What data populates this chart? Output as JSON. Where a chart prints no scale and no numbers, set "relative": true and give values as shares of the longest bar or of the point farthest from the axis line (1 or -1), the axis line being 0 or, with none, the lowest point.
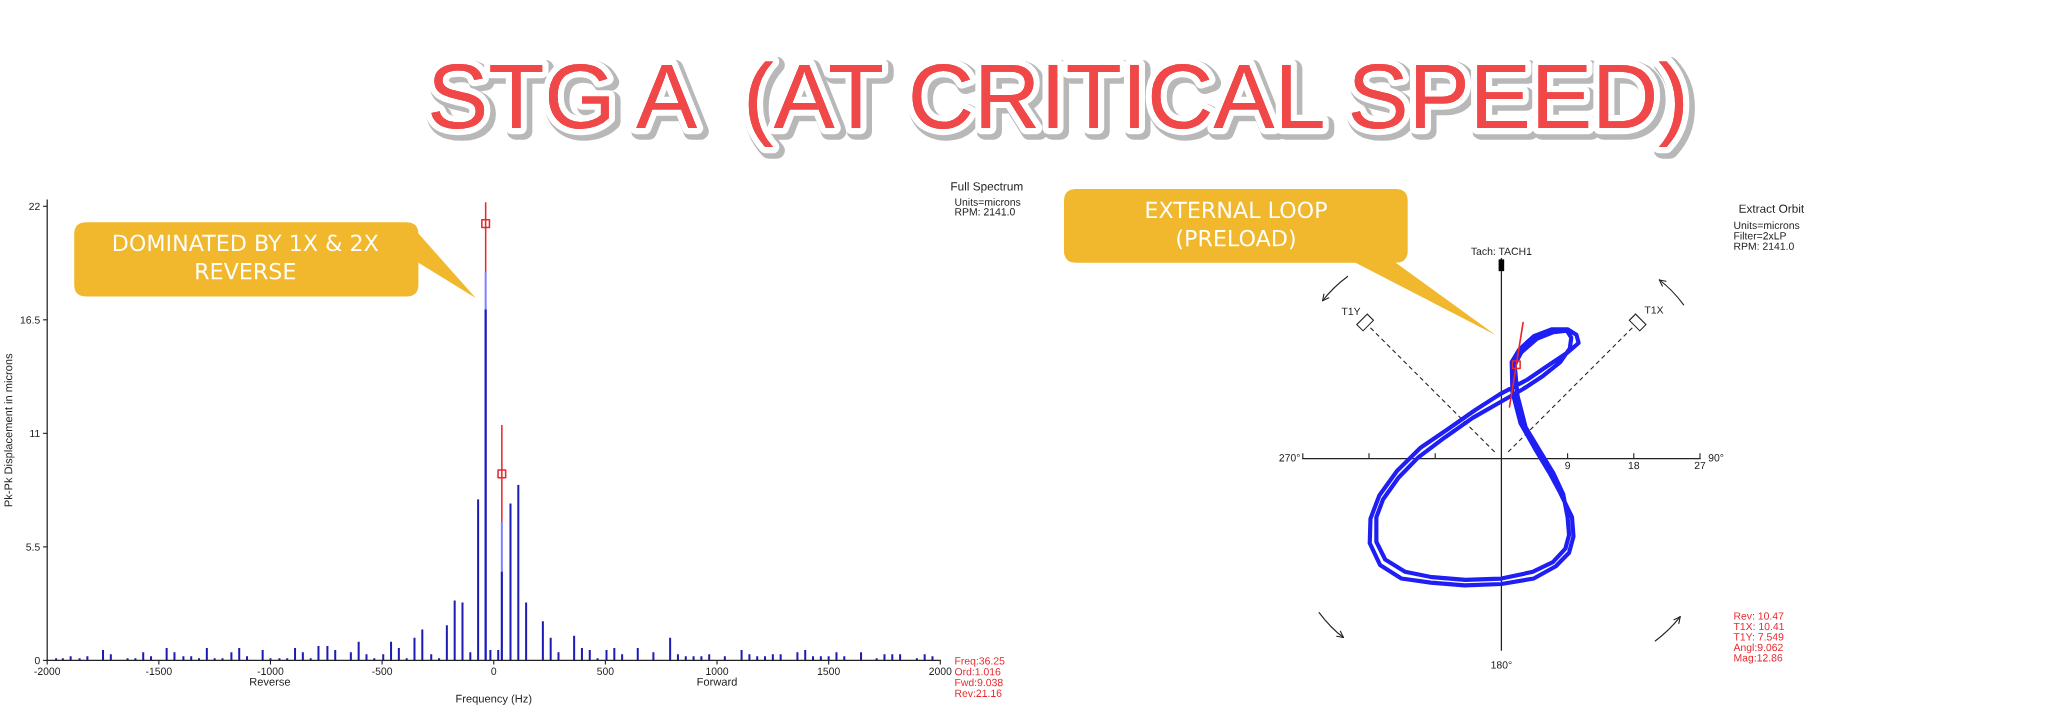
{
  "chart_data": [
    {
      "type": "bar",
      "title": "STG A  (AT CRITICAL SPEED)",
      "xlabel": "Frequency (Hz)",
      "ylabel": "Pk-Pk Displacement in microns",
      "xlim": [
        -2000,
        2000
      ],
      "xticks": [
        -2000,
        -1500,
        -1000,
        -500,
        0,
        500,
        1000,
        1500,
        2000
      ],
      "ylim": [
        0,
        22.3
      ],
      "yticks": [
        0,
        5.5,
        11,
        16.5,
        22
      ],
      "series": [
        {
          "color": "#1c1cb4",
          "x": [
            -1960,
            -1930,
            -1895,
            -1855,
            -1820,
            -1750,
            -1715,
            -1640,
            -1605,
            -1570,
            -1535,
            -1465,
            -1430,
            -1390,
            -1355,
            -1320,
            -1285,
            -1250,
            -1215,
            -1175,
            -1140,
            -1105,
            -1035,
            -1000,
            -960,
            -925,
            -890,
            -855,
            -820,
            -785,
            -745,
            -710,
            -640,
            -605,
            -570,
            -535,
            -495,
            -460,
            -425,
            -390,
            -355,
            -320,
            -280,
            -245,
            -210,
            -175,
            -140,
            -105,
            -70,
            -36.25,
            -15,
            20,
            36.25,
            75,
            110,
            145,
            220,
            255,
            290,
            360,
            395,
            430,
            465,
            505,
            540,
            575,
            645,
            715,
            790,
            825,
            860,
            895,
            930,
            965,
            1035,
            1110,
            1145,
            1180,
            1215,
            1250,
            1285,
            1360,
            1395,
            1430,
            1465,
            1500,
            1535,
            1570,
            1645,
            1715,
            1750,
            1785,
            1820,
            1895,
            1930,
            1965
          ],
          "values": [
            0.1,
            0.1,
            0.2,
            0.1,
            0.2,
            0.5,
            0.3,
            0.1,
            0.1,
            0.4,
            0.2,
            0.6,
            0.4,
            0.2,
            0.2,
            0.1,
            0.6,
            0.1,
            0.1,
            0.4,
            0.6,
            0.2,
            0.5,
            0.1,
            0.1,
            0.1,
            0.6,
            0.4,
            0.1,
            0.7,
            0.7,
            0.5,
            0.4,
            0.9,
            0.3,
            0.1,
            0.3,
            0.9,
            0.6,
            0.1,
            1.1,
            1.5,
            0.3,
            0.1,
            1.7,
            2.9,
            2.8,
            0.4,
            7.8,
            17,
            0.5,
            0.5,
            4.3,
            7.6,
            8.5,
            2.8,
            1.9,
            1.1,
            0.4,
            1.2,
            0.6,
            0.5,
            0.1,
            0.5,
            0.6,
            0.3,
            0.6,
            0.4,
            1.1,
            0.3,
            0.2,
            0.2,
            0.2,
            0.3,
            0.2,
            0.5,
            0.3,
            0.2,
            0.2,
            0.3,
            0.3,
            0.4,
            0.5,
            0.2,
            0.2,
            0.2,
            0.4,
            0.2,
            0.4,
            0.1,
            0.3,
            0.3,
            0.3,
            0.1,
            0.3,
            0.2
          ]
        },
        {
          "color": "#8080ff",
          "x": [
            -36.25,
            36.25
          ],
          "values": [
            18.8,
            6.7
          ]
        },
        {
          "type": "scatter",
          "marker": "square",
          "color": "#e8282d",
          "x": [
            -36.25,
            36.25
          ],
          "values": [
            21.16,
            9.038
          ],
          "errors": [
            [
              18.8,
              22.2
            ],
            [
              6.7,
              11.4
            ]
          ]
        }
      ],
      "annotations": [
        "Full Spectrum",
        "Units=microns",
        "RPM: 2141.0",
        "Reverse",
        "Forward",
        "Freq:36.25",
        "Ord:1.016",
        "Fwd:9.038",
        "Rev:21.16",
        "DOMINATED BY 1X & 2X\nREVERSE"
      ]
    },
    {
      "type": "line",
      "relative": true,
      "xlim": [
        -27,
        27
      ],
      "xticks": [
        {
          "value": -27,
          "label": null
        },
        {
          "value": -18,
          "label": null
        },
        {
          "value": -9,
          "label": null
        },
        9,
        18,
        27
      ],
      "series": [
        {
          "color": "#1e1ef5",
          "x": [
            1.8,
            2.2,
            3.3,
            5.2,
            7.1,
            8.4,
            9.0,
            9.2,
            8.7,
            7.0,
            4.3,
            0,
            -4.9,
            -9.4,
            -13.1,
            -15.8,
            -17.0,
            -17.0,
            -16.1,
            -14.0,
            -11.3,
            -7.6,
            -3.9,
            0,
            2.9,
            5.7,
            8.0,
            9.3,
            9.5,
            8.9,
            7.1,
            4.8,
            2.7,
            1.8,
            1.4,
            1.5,
            2.6,
            4.5,
            6.5,
            8.0,
            9.6,
            9.8,
            9.2,
            7.4,
            4.4,
            0,
            -5.0,
            -9.6,
            -13.6,
            -16.5,
            -17.9,
            -17.8,
            -16.6,
            -14.2,
            -11.0,
            -7.2,
            -3.5,
            0,
            3.5,
            6.5,
            9.0,
            10.5,
            10.2,
            9.0,
            6.8,
            4.4,
            2.4,
            1.4
          ],
          "values": [
            0.69,
            0.46,
            0.23,
            0.06,
            -0.11,
            -0.26,
            -0.43,
            -0.56,
            -0.66,
            -0.76,
            -0.83,
            -0.88,
            -0.89,
            -0.87,
            -0.83,
            -0.74,
            -0.61,
            -0.43,
            -0.3,
            -0.14,
            0.01,
            0.16,
            0.3,
            0.42,
            0.51,
            0.61,
            0.71,
            0.81,
            0.89,
            0.94,
            0.93,
            0.88,
            0.78,
            0.69,
            0.71,
            0.49,
            0.26,
            0.08,
            -0.1,
            -0.25,
            -0.43,
            -0.57,
            -0.69,
            -0.79,
            -0.88,
            -0.92,
            -0.93,
            -0.91,
            -0.88,
            -0.78,
            -0.62,
            -0.44,
            -0.27,
            -0.09,
            0.08,
            0.22,
            0.36,
            0.48,
            0.58,
            0.69,
            0.78,
            0.85,
            0.91,
            0.95,
            0.95,
            0.9,
            0.8,
            0.71
          ]
        },
        {
          "color": "#e8282d",
          "x": [
            1.1,
            2.95
          ],
          "values": [
            0.38,
            1
          ]
        },
        {
          "type": "scatter",
          "marker": "square",
          "color": "#e8282d",
          "x": [
            2.03
          ],
          "values": [
            0.69
          ]
        }
      ],
      "annotations": [
        "Extract Orbit",
        "Units=microns",
        "Filter=2xLP",
        "RPM: 2141.0",
        "Tach: TACH1",
        "T1Y",
        "T1X",
        "270°",
        "90°",
        "180°",
        "Rev: 10.47",
        "T1X: 10.41",
        "T1Y: 7.549",
        "Angl:9.062",
        "Mag:12.86",
        "EXTERNAL LOOP\n(PRELOAD)"
      ]
    }
  ]
}
